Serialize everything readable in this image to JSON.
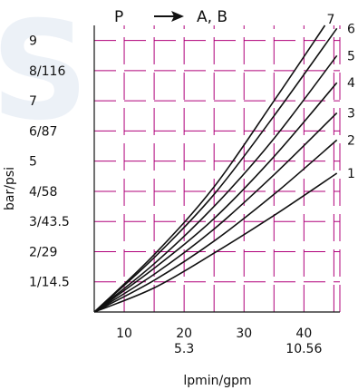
{
  "chart_data": {
    "type": "line",
    "title_left": "P",
    "title_right": "A, B",
    "title_arrow": "arrow-right-icon",
    "xlabel": "lpmin/gpm",
    "ylabel": "bar/psi",
    "xlim": [
      5,
      46
    ],
    "ylim": [
      0,
      9.5
    ],
    "x_ticks": [
      {
        "v": 10,
        "l1": "10",
        "l2": ""
      },
      {
        "v": 20,
        "l1": "20",
        "l2": "5.3"
      },
      {
        "v": 30,
        "l1": "30",
        "l2": ""
      },
      {
        "v": 40,
        "l1": "40",
        "l2": "10.56"
      }
    ],
    "y_ticks": [
      {
        "v": 1,
        "label": "1/14.5"
      },
      {
        "v": 2,
        "label": "2/29"
      },
      {
        "v": 3,
        "label": "3/43.5"
      },
      {
        "v": 4,
        "label": "4/58"
      },
      {
        "v": 5,
        "label": "5"
      },
      {
        "v": 6,
        "label": "6/87"
      },
      {
        "v": 7,
        "label": "7"
      },
      {
        "v": 8,
        "label": "8/116"
      },
      {
        "v": 9,
        "label": "9"
      }
    ],
    "grid": true,
    "grid_color": "#b0007a",
    "line_color": "#111111",
    "series": [
      {
        "name": "1",
        "x": [
          5,
          15,
          25,
          35,
          45.5
        ],
        "y": [
          0,
          0.8,
          1.95,
          3.2,
          4.6
        ]
      },
      {
        "name": "2",
        "x": [
          5,
          15,
          25,
          35,
          45.5
        ],
        "y": [
          0,
          1.05,
          2.35,
          3.9,
          5.7
        ]
      },
      {
        "name": "3",
        "x": [
          5,
          15,
          25,
          35,
          45.5
        ],
        "y": [
          0,
          1.25,
          2.75,
          4.55,
          6.6
        ]
      },
      {
        "name": "4",
        "x": [
          5,
          15,
          25,
          35,
          45.5
        ],
        "y": [
          0,
          1.45,
          3.1,
          5.15,
          7.6
        ]
      },
      {
        "name": "5",
        "x": [
          5,
          15,
          25,
          35,
          45.5
        ],
        "y": [
          0,
          1.6,
          3.5,
          5.75,
          8.5
        ]
      },
      {
        "name": "6",
        "x": [
          5,
          15,
          25,
          35,
          45.5
        ],
        "y": [
          0,
          1.8,
          3.9,
          6.5,
          9.4
        ]
      },
      {
        "name": "7",
        "x": [
          5,
          15,
          25,
          35,
          43.5
        ],
        "y": [
          0,
          1.9,
          4.15,
          7.0,
          9.5
        ]
      }
    ]
  }
}
